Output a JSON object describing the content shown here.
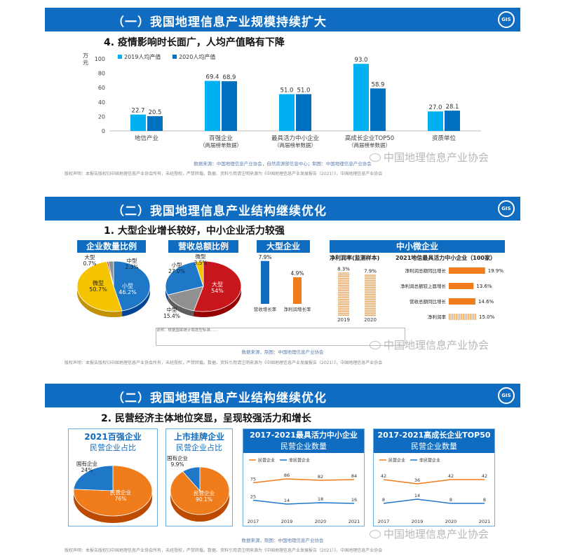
{
  "section1": {
    "banner": "（一）我国地理信息产业规模持续扩大",
    "subtitle": "4. 疫情影响时长面广，人均产值略有下降",
    "logo": "GIS",
    "source": "数据来源：中国地理信息产业协会，自然资源部信息中心；制图：中国地理信息产业协会",
    "copyright": "版权声明：本报告版权归中国地理信息产业协会所有，未经授权，严禁转载。数据、资料引用请注明来源为《中国地理信息产业发展报告（2021）》，中国地理信息产业协会"
  },
  "section2": {
    "banner": "（二）我国地理信息产业结构继续优化",
    "subtitle": "1. 大型企业增长较好，中小企业活力较强",
    "logo": "GIS",
    "count_title": "企业数量比例",
    "revenue_title": "营收总额比例",
    "large_title": "大型企业",
    "sme_title": "中小微企业",
    "net_profit_title": "净利润率(监测样本)",
    "top100_title": "2021地信最具活力中小企业（100家）",
    "note": "说明：根据国家统计局划型标准……",
    "source": "数据来源，制图：中国地理信息产业协会",
    "copyright": "版权声明：本报告版权归中国地理信息产业协会所有，未经授权，严禁转载。数据、资料引用请注明来源为《中国地理信息产业发展报告（2021）》，中国地理信息产业协会"
  },
  "section3": {
    "banner": "（二）我国地理信息产业结构继续优化",
    "subtitle": "2. 民营经济主体地位突显，呈现较强活力和增长",
    "logo": "GIS",
    "card1_head": "2021百强企业",
    "card1_sub": "民营企业占比",
    "card2_head": "上市挂牌企业",
    "card2_sub": "民营企业占比",
    "card3_head": "2017-2021最具活力中小企业",
    "card3_sub": "民营企业数量",
    "card4_head": "2017-2021高成长企业TOP50",
    "card4_sub": "民营企业数量",
    "source": "数据来源，制图：中国地理信息产业协会",
    "copyright": "版权声明：本报告版权归中国地理信息产业协会所有，未经授权，严禁转载。数据、资料引用请注明来源为《中国地理信息产业发展报告（2021）》，中国地理信息产业协会"
  },
  "watermark": "中国地理信息产业协会",
  "chart_data": [
    {
      "type": "bar",
      "ylabel": "万元",
      "ylim": [
        0,
        100
      ],
      "yticks": [
        0,
        20,
        40,
        60,
        80,
        100
      ],
      "categories": [
        "地信产业",
        "百强企业\n（两届榜单数据）",
        "最具活力中小企业\n（两届榜单数据）",
        "高成长企业TOP50\n（两届榜单数据）",
        "资质单位"
      ],
      "series": [
        {
          "name": "2019人均产值",
          "values": [
            22.7,
            69.4,
            51.0,
            93.0,
            27.0
          ],
          "color": "#00b0f0"
        },
        {
          "name": "2020人均产值",
          "values": [
            20.5,
            68.9,
            51.0,
            58.9,
            28.1
          ],
          "color": "#0070c0"
        }
      ],
      "legend": "top-left"
    },
    {
      "type": "pie",
      "title": "企业数量比例",
      "labels": [
        "小型",
        "微型",
        "大型",
        "中型"
      ],
      "values": [
        46.2,
        50.7,
        0.7,
        2.3
      ],
      "display": [
        "46.2%",
        "50.7%",
        "0.7%",
        "2.3%"
      ],
      "colors": [
        "#1f77c8",
        "#f5c400",
        "#c0392b",
        "#909090"
      ]
    },
    {
      "type": "pie",
      "title": "营收总额比例",
      "labels": [
        "大型",
        "中型",
        "小型",
        "微型"
      ],
      "values": [
        54,
        15.4,
        27.0,
        3.5
      ],
      "display": [
        "54%",
        "15.4%",
        "27.0%",
        "3.5%"
      ],
      "colors": [
        "#c8161d",
        "#909090",
        "#1f77c8",
        "#f5c400"
      ]
    },
    {
      "type": "bar",
      "title": "大型企业",
      "categories": [
        "营收增长率",
        "净利润增长率"
      ],
      "values": [
        7.9,
        4.9
      ],
      "display": [
        "7.9%",
        "4.9%"
      ],
      "colors": [
        "#0f6cc0",
        "#f07c1c"
      ]
    },
    {
      "type": "bar",
      "title": "净利润率(监测样本)",
      "categories": [
        "2019",
        "2020"
      ],
      "values": [
        8.3,
        7.9
      ],
      "display": [
        "8.3%",
        "7.9%"
      ]
    },
    {
      "type": "bar",
      "title": "2021地信最具活力中小企业（100家）",
      "orientation": "horizontal",
      "categories": [
        "净利润总额同比增长",
        "净利润总额较上届增长",
        "营收总额同比增长",
        "净利润率"
      ],
      "values": [
        19.9,
        13.6,
        14.6,
        15.0
      ],
      "display": [
        "19.9%",
        "13.6%",
        "14.6%",
        "15.0%"
      ]
    },
    {
      "type": "pie",
      "title": "2021百强企业 民营企业占比",
      "labels": [
        "民营企业",
        "国有企业"
      ],
      "values": [
        76,
        24
      ],
      "display": [
        "76%",
        "24%"
      ],
      "colors": [
        "#f07c1c",
        "#1f77c8"
      ]
    },
    {
      "type": "pie",
      "title": "上市挂牌企业 民营企业占比",
      "labels": [
        "民营企业",
        "国有企业"
      ],
      "values": [
        90.1,
        9.9
      ],
      "display": [
        "90.1%",
        "9.9%"
      ],
      "colors": [
        "#f07c1c",
        "#1f77c8"
      ]
    },
    {
      "type": "line",
      "title": "2017-2021最具活力中小企业 民营企业数量",
      "x": [
        "2017",
        "2019",
        "2020",
        "2021"
      ],
      "series": [
        {
          "name": "民营企业",
          "values": [
            75,
            86,
            82,
            84
          ],
          "color": "#f07c1c"
        },
        {
          "name": "非民营企业",
          "values": [
            25,
            14,
            18,
            16
          ],
          "color": "#1f77c8"
        }
      ],
      "legend": "top-left"
    },
    {
      "type": "line",
      "title": "2017-2021高成长企业TOP50 民营企业数量",
      "x": [
        "2017",
        "2019",
        "2020",
        "2021"
      ],
      "series": [
        {
          "name": "民营企业",
          "values": [
            42,
            36,
            42,
            42
          ],
          "color": "#f07c1c"
        },
        {
          "name": "非民营企业",
          "values": [
            8,
            14,
            8,
            8
          ],
          "color": "#1f77c8"
        }
      ],
      "legend": "top-left"
    }
  ]
}
